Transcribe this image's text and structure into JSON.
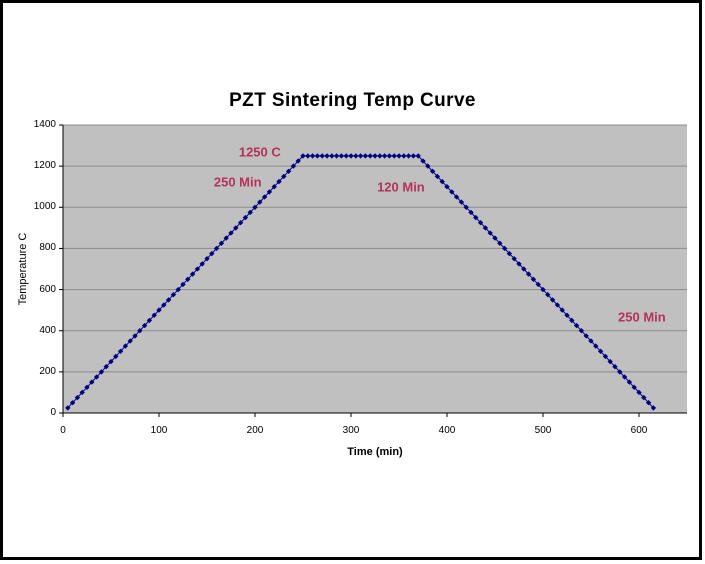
{
  "page": {
    "background": "#ffffff",
    "border_color": "#000000"
  },
  "chart_data": {
    "type": "scatter",
    "title": "PZT Sintering Temp Curve",
    "xlabel": "Time (min)",
    "ylabel": "Temperature C",
    "xlim": [
      0,
      650
    ],
    "ylim": [
      0,
      1400
    ],
    "x_ticks": [
      0,
      100,
      200,
      300,
      400,
      500,
      600
    ],
    "y_ticks": [
      0,
      200,
      400,
      600,
      800,
      1000,
      1200,
      1400
    ],
    "grid": "horizontal",
    "legend": "none",
    "colors": {
      "plot_bg": "#c0c0c0",
      "gridline": "#8c8c8c",
      "axis": "#000000",
      "marker": "#000080",
      "annotation": "#b5325a"
    },
    "series": [
      {
        "name": "sintering-temp-profile",
        "marker": "diamond",
        "color": "#000080",
        "x": [
          5,
          10,
          15,
          20,
          25,
          30,
          35,
          40,
          45,
          50,
          55,
          60,
          65,
          70,
          75,
          80,
          85,
          90,
          95,
          100,
          105,
          110,
          115,
          120,
          125,
          130,
          135,
          140,
          145,
          150,
          155,
          160,
          165,
          170,
          175,
          180,
          185,
          190,
          195,
          200,
          205,
          210,
          215,
          220,
          225,
          230,
          235,
          240,
          245,
          250,
          255,
          260,
          265,
          270,
          275,
          280,
          285,
          290,
          295,
          300,
          305,
          310,
          315,
          320,
          325,
          330,
          335,
          340,
          345,
          350,
          355,
          360,
          365,
          370,
          375,
          380,
          385,
          390,
          395,
          400,
          405,
          410,
          415,
          420,
          425,
          430,
          435,
          440,
          445,
          450,
          455,
          460,
          465,
          470,
          475,
          480,
          485,
          490,
          495,
          500,
          505,
          510,
          515,
          520,
          525,
          530,
          535,
          540,
          545,
          550,
          555,
          560,
          565,
          570,
          575,
          580,
          585,
          590,
          595,
          600,
          605,
          610,
          615
        ],
        "y": [
          25,
          50,
          75,
          100,
          125,
          150,
          175,
          200,
          225,
          250,
          275,
          300,
          325,
          350,
          375,
          400,
          425,
          450,
          475,
          500,
          525,
          550,
          575,
          600,
          625,
          650,
          675,
          700,
          725,
          750,
          775,
          800,
          825,
          850,
          875,
          900,
          925,
          950,
          975,
          1000,
          1025,
          1050,
          1075,
          1100,
          1125,
          1150,
          1175,
          1200,
          1225,
          1250,
          1250,
          1250,
          1250,
          1250,
          1250,
          1250,
          1250,
          1250,
          1250,
          1250,
          1250,
          1250,
          1250,
          1250,
          1250,
          1250,
          1250,
          1250,
          1250,
          1250,
          1250,
          1250,
          1250,
          1250,
          1225,
          1200,
          1175,
          1150,
          1125,
          1100,
          1075,
          1050,
          1025,
          1000,
          975,
          950,
          925,
          900,
          875,
          850,
          825,
          800,
          775,
          750,
          725,
          700,
          675,
          650,
          625,
          600,
          575,
          550,
          525,
          500,
          475,
          450,
          425,
          400,
          375,
          350,
          325,
          300,
          275,
          250,
          225,
          200,
          175,
          150,
          125,
          100,
          75,
          50,
          25
        ]
      }
    ],
    "annotations": [
      {
        "name": "annotation-peak-temp",
        "text": "1250 C",
        "t": 205,
        "temp": 1270
      },
      {
        "name": "annotation-ramp-up-duration",
        "text": "250 Min",
        "t": 182,
        "temp": 1123
      },
      {
        "name": "annotation-hold-duration",
        "text": "120 Min",
        "t": 352,
        "temp": 1099
      },
      {
        "name": "annotation-ramp-down-duration",
        "text": "250 Min",
        "t": 603,
        "temp": 467
      }
    ]
  }
}
